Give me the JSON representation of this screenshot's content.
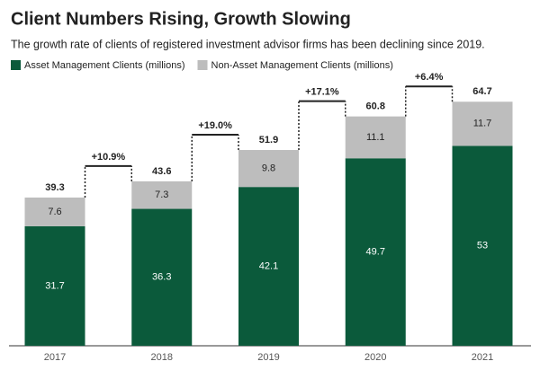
{
  "chart_data": {
    "type": "stacked-bar",
    "title": "Client Numbers Rising, Growth Slowing",
    "subtitle": "The growth rate of clients of registered investment advisor firms has been declining since 2019.",
    "categories": [
      "2017",
      "2018",
      "2019",
      "2020",
      "2021"
    ],
    "series": [
      {
        "name": "Asset Management Clients (millions)",
        "color": "#0b5a3b",
        "values": [
          31.7,
          36.3,
          42.1,
          49.7,
          53
        ]
      },
      {
        "name": "Non-Asset Management Clients (millions)",
        "color": "#bdbdbd",
        "values": [
          7.6,
          7.3,
          9.8,
          11.1,
          11.7
        ]
      }
    ],
    "totals": [
      39.3,
      43.6,
      51.9,
      60.8,
      64.7
    ],
    "annotations": [
      "+10.9%",
      "+19.0%",
      "+17.1%",
      "+6.4%"
    ]
  }
}
